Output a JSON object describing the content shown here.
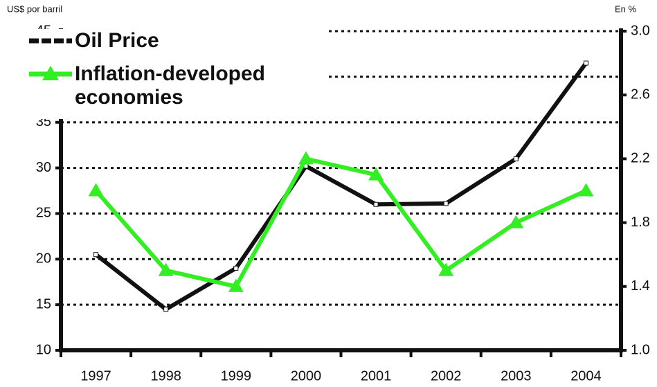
{
  "chart_data": {
    "type": "line",
    "y_label": "US$ por barril",
    "y2_label": "En %",
    "categories": [
      "1997",
      "1998",
      "1999",
      "2000",
      "2001",
      "2002",
      "2003",
      "2004"
    ],
    "series": [
      {
        "name": "Oil Price",
        "color": "#111111",
        "values": [
          20.5,
          14.5,
          19,
          30.2,
          26,
          26.1,
          31,
          41.5
        ]
      },
      {
        "name": "Inflation-developed economies",
        "color": "#33ee22",
        "axis": "y2",
        "values": [
          2.0,
          1.5,
          1.4,
          2.2,
          2.1,
          1.5,
          1.8,
          2.0
        ]
      }
    ],
    "ylim": [
      10,
      45
    ],
    "yticks": [
      10,
      15,
      20,
      25,
      30,
      35,
      40,
      45
    ],
    "y2lim": [
      1,
      3
    ],
    "y2ticks": [
      {
        "value": 1,
        "label": "1.0"
      },
      1.4,
      1.8,
      2.2,
      2.6,
      {
        "value": 3,
        "label": "3.0"
      }
    ],
    "grid": true
  }
}
